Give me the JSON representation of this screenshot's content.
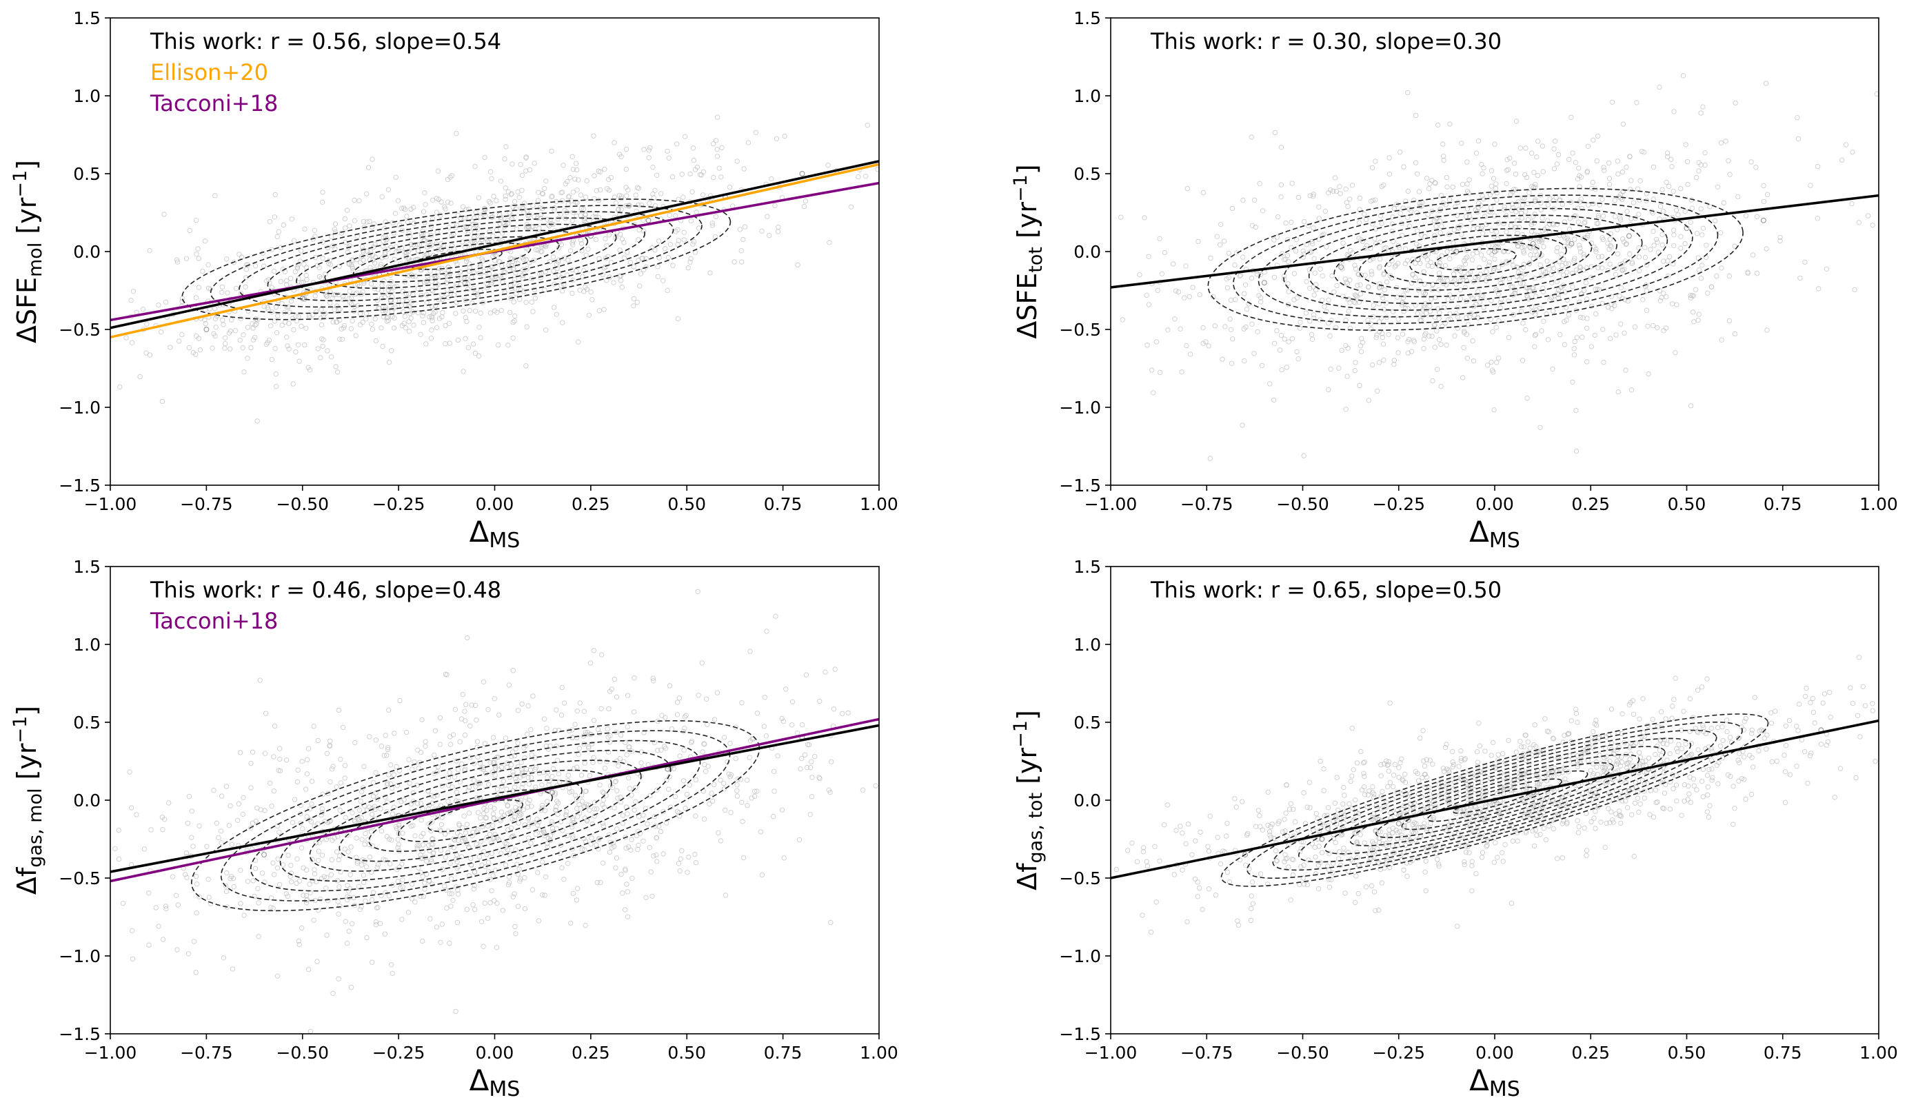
{
  "chart_data": [
    {
      "type": "scatter",
      "x": [
        -0.75,
        -0.5,
        -0.3,
        -0.15,
        0.0,
        0.1,
        0.25,
        0.4,
        0.6,
        0.8
      ],
      "y": [
        -0.5,
        -0.3,
        -0.15,
        -0.05,
        0.0,
        0.05,
        0.1,
        0.2,
        0.35,
        0.5
      ],
      "xlabel": {
        "main": "Δ",
        "sub": "MS"
      },
      "ylabel": {
        "main": "ΔSFE",
        "sub": "mol",
        "unit": " [yr",
        "sup": "−1",
        "close": "]"
      },
      "xlim": [
        -1.0,
        1.0
      ],
      "ylim": [
        -1.5,
        1.5
      ],
      "xticks": [
        "−1.00",
        "−0.75",
        "−0.50",
        "−0.25",
        "0.00",
        "0.25",
        "0.50",
        "0.75",
        "1.00"
      ],
      "yticks": [
        "−1.5",
        "−1.0",
        "−0.5",
        "0.0",
        "0.5",
        "1.0",
        "1.5"
      ],
      "contours": {
        "center": [
          -0.1,
          -0.05
        ],
        "width": 0.72,
        "height": 0.3,
        "angle_deg": 8,
        "levels": 9
      },
      "lines": [
        {
          "name": "Tacconi+18",
          "color": "#800080",
          "x": [
            -1.0,
            1.0
          ],
          "y": [
            -0.44,
            0.44
          ]
        },
        {
          "name": "Ellison+20",
          "color": "#ffa500",
          "x": [
            -1.0,
            1.0
          ],
          "y": [
            -0.55,
            0.56
          ]
        },
        {
          "name": "This work",
          "color": "#000000",
          "x": [
            -1.0,
            1.0
          ],
          "y": [
            -0.49,
            0.58
          ]
        }
      ],
      "annotations": [
        {
          "text": "This work: r = 0.56, slope=0.54",
          "color": "#000000"
        },
        {
          "text": "Ellison+20",
          "color": "#ffa500"
        },
        {
          "text": "Tacconi+18",
          "color": "#800080"
        }
      ]
    },
    {
      "type": "scatter",
      "x": [
        -0.6,
        -0.4,
        -0.2,
        -0.1,
        0.0,
        0.1,
        0.2,
        0.35,
        0.5,
        0.7
      ],
      "y": [
        -0.2,
        -0.1,
        -0.05,
        0.0,
        0.0,
        0.05,
        0.05,
        0.1,
        0.15,
        0.2
      ],
      "xlabel": {
        "main": "Δ",
        "sub": "MS"
      },
      "ylabel": {
        "main": "ΔSFE",
        "sub": "tot",
        "unit": " [yr",
        "sup": "−1",
        "close": "]"
      },
      "xlim": [
        -1.0,
        1.0
      ],
      "ylim": [
        -1.5,
        1.5
      ],
      "xticks": [
        "−1.00",
        "−0.75",
        "−0.50",
        "−0.25",
        "0.00",
        "0.25",
        "0.50",
        "0.75",
        "1.00"
      ],
      "yticks": [
        "−1.5",
        "−1.0",
        "−0.5",
        "0.0",
        "0.5",
        "1.0",
        "1.5"
      ],
      "contours": {
        "center": [
          -0.05,
          -0.05
        ],
        "width": 0.7,
        "height": 0.42,
        "angle_deg": 6,
        "levels": 10
      },
      "lines": [
        {
          "name": "This work",
          "color": "#000000",
          "x": [
            -1.0,
            1.0
          ],
          "y": [
            -0.23,
            0.36
          ]
        }
      ],
      "annotations": [
        {
          "text": "This work: r = 0.30, slope=0.30",
          "color": "#000000"
        }
      ]
    },
    {
      "type": "scatter",
      "x": [
        -0.6,
        -0.4,
        -0.25,
        -0.1,
        0.0,
        0.15,
        0.3,
        0.45,
        0.6,
        0.8
      ],
      "y": [
        -0.35,
        -0.2,
        -0.1,
        -0.05,
        0.0,
        0.05,
        0.15,
        0.2,
        0.3,
        0.4
      ],
      "xlabel": {
        "main": "Δ",
        "sub": "MS"
      },
      "ylabel": {
        "main": "Δf",
        "sub": "gas, mol",
        "unit": " [yr",
        "sup": "−1",
        "close": "]"
      },
      "xlim": [
        -1.0,
        1.0
      ],
      "ylim": [
        -1.5,
        1.5
      ],
      "xticks": [
        "−1.00",
        "−0.75",
        "−0.50",
        "−0.25",
        "0.00",
        "0.25",
        "0.50",
        "0.75",
        "1.00"
      ],
      "yticks": [
        "−1.5",
        "−1.0",
        "−0.5",
        "0.0",
        "0.5",
        "1.0",
        "1.5"
      ],
      "contours": {
        "center": [
          -0.05,
          -0.1
        ],
        "width": 0.76,
        "height": 0.42,
        "angle_deg": 14,
        "levels": 9
      },
      "lines": [
        {
          "name": "Tacconi+18",
          "color": "#800080",
          "x": [
            -1.0,
            1.0
          ],
          "y": [
            -0.52,
            0.52
          ]
        },
        {
          "name": "This work",
          "color": "#000000",
          "x": [
            -1.0,
            1.0
          ],
          "y": [
            -0.46,
            0.48
          ]
        }
      ],
      "annotations": [
        {
          "text": "This work: r = 0.46, slope=0.48",
          "color": "#000000"
        },
        {
          "text": "Tacconi+18",
          "color": "#800080"
        }
      ]
    },
    {
      "type": "scatter",
      "x": [
        -0.65,
        -0.45,
        -0.25,
        -0.1,
        0.0,
        0.1,
        0.25,
        0.4,
        0.6,
        0.85
      ],
      "y": [
        -0.35,
        -0.25,
        -0.15,
        -0.05,
        0.0,
        0.05,
        0.12,
        0.2,
        0.3,
        0.45
      ],
      "xlabel": {
        "main": "Δ",
        "sub": "MS"
      },
      "ylabel": {
        "main": "Δf",
        "sub": "gas, tot",
        "unit": " [yr",
        "sup": "−1",
        "close": "]"
      },
      "xlim": [
        -1.0,
        1.0
      ],
      "ylim": [
        -1.5,
        1.5
      ],
      "xticks": [
        "−1.00",
        "−0.75",
        "−0.50",
        "−0.25",
        "0.00",
        "0.25",
        "0.50",
        "0.75",
        "1.00"
      ],
      "yticks": [
        "−1.5",
        "−1.0",
        "−0.5",
        "0.0",
        "0.5",
        "1.0",
        "1.5"
      ],
      "contours": {
        "center": [
          0.0,
          0.0
        ],
        "width": 0.74,
        "height": 0.24,
        "angle_deg": 16,
        "levels": 10
      },
      "lines": [
        {
          "name": "This work",
          "color": "#000000",
          "x": [
            -1.0,
            1.0
          ],
          "y": [
            -0.5,
            0.51
          ]
        }
      ],
      "annotations": [
        {
          "text": "This work: r = 0.65, slope=0.50",
          "color": "#000000"
        }
      ]
    }
  ]
}
